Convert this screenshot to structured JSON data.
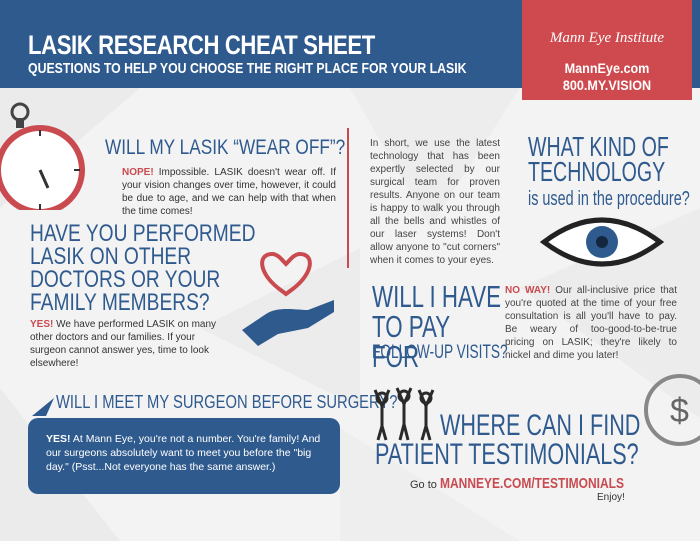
{
  "header": {
    "title": "LASIK RESEARCH CHEAT SHEET",
    "subtitle": "QUESTIONS TO HELP YOU CHOOSE THE RIGHT PLACE FOR YOUR LASIK"
  },
  "brand": {
    "logo": "Mann Eye Institute",
    "url": "MannEye.com",
    "phone": "800.MY.VISION"
  },
  "q1": {
    "title": "WILL MY LASIK “WEAR OFF”?",
    "lead": "NOPE!",
    "text": " Impossible. LASIK doesn't wear off. If your vision changes over time, however, it could be due to age, and we can help with that when the time comes!"
  },
  "q2": {
    "title": "HAVE YOU PERFORMED LASIK ON OTHER DOCTORS OR YOUR FAMILY MEMBERS?",
    "lead": "YES!",
    "text": " We have performed LASIK on many other doctors and our families. If your surgeon cannot answer yes, time to look elsewhere!"
  },
  "q3": {
    "title": "WILL I MEET  MY SURGEON BEFORE SURGERY?",
    "lead": "YES!",
    "text": " At Mann Eye, you're not a number. You're family! And our surgeons absolutely want to meet you before the \"big day.\" (Psst...Not everyone has the same answer.)"
  },
  "tech": {
    "text": "In short, we use the latest technology that has been expertly selected by our surgical team for proven results. Anyone on our team is happy to walk you through all the bells and whistles of our laser systems! Don't allow anyone to \"cut corners\" when it comes to your eyes.",
    "title": "WHAT KIND OF TECHNOLOGY",
    "subtitle": "is used in the procedure?"
  },
  "pay": {
    "title": "WILL I HAVE TO PAY FOR",
    "subtitle": "FOLLOW-UP VISITS?",
    "lead": "NO WAY!",
    "text": " Our all-inclusive price that you're quoted at the time of your free consultation is all you'll have to pay. Be weary of too-good-to-be-true pricing on LASIK; they're likely to nickel and dime you later!"
  },
  "testimonials": {
    "title_line1": "WHERE CAN I FIND",
    "title_line2": "PATIENT TESTIMONIALS?",
    "goto": "Go to ",
    "link": "MANNEYE.COM/TESTIMONIALS",
    "enjoy": "Enjoy!"
  },
  "colors": {
    "blue": "#2f5a8e",
    "red": "#c94a4f",
    "background": "#f3f3f4"
  },
  "icons": [
    "stopwatch-icon",
    "heart-hand-icon",
    "speech-bubble-icon",
    "eye-icon",
    "people-cheering-icon",
    "dollar-coin-icon"
  ]
}
